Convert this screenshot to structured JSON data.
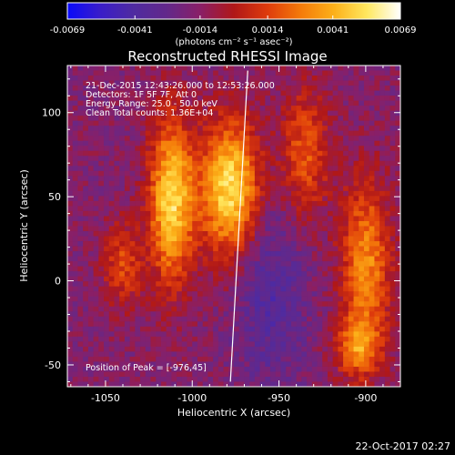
{
  "chart_data": {
    "type": "heatmap",
    "title": "Reconstructed RHESSI Image",
    "xlabel": "Heliocentric X (arcsec)",
    "ylabel": "Heliocentric Y (arcsec)",
    "xlim": [
      -1072,
      -880
    ],
    "ylim": [
      -63,
      128
    ],
    "xticks": [
      -1050,
      -1000,
      -950,
      -900
    ],
    "yticks": [
      -50,
      0,
      50,
      100
    ],
    "colorbar": {
      "label": "(photons cm⁻² s⁻¹ asec⁻²)",
      "range": [
        -0.0069,
        0.0069
      ],
      "ticks": [
        "-0.0069",
        "-0.0041",
        "-0.0014",
        "0.0014",
        "0.0041",
        "0.0069"
      ],
      "stops": [
        "#0a0afa",
        "#3a1dc8",
        "#4f2ba0",
        "#63288a",
        "#8a1f66",
        "#b01818",
        "#de3b0c",
        "#f47a0a",
        "#fcb019",
        "#ffe860",
        "#ffffff"
      ]
    },
    "annotations": [
      "21-Dec-2015 12:43:26.000 to 12:53:26.000",
      "Detectors: 1F 5F 7F, Att 0",
      "Energy Range: 25.0 - 50.0 keV",
      "Clean     Total counts: 1.36E+04"
    ],
    "peak_label": "Position of Peak = [-976,45]",
    "peak": [
      -976,
      45
    ],
    "limb_line": [
      [
        -968,
        125
      ],
      [
        -978,
        -60
      ]
    ],
    "sources": [
      {
        "x": -1012,
        "y": 48,
        "amp": 0.0068,
        "sx": 9,
        "sy": 34
      },
      {
        "x": -978,
        "y": 55,
        "amp": 0.0072,
        "sx": 12,
        "sy": 28
      },
      {
        "x": -1040,
        "y": 10,
        "amp": 0.003,
        "sx": 8,
        "sy": 18
      },
      {
        "x": -900,
        "y": 10,
        "amp": 0.0048,
        "sx": 10,
        "sy": 35
      },
      {
        "x": -905,
        "y": -40,
        "amp": 0.004,
        "sx": 9,
        "sy": 12
      },
      {
        "x": -935,
        "y": 75,
        "amp": 0.0035,
        "sx": 10,
        "sy": 28
      }
    ],
    "background": -0.0016,
    "grid": false
  },
  "timestamp": "22-Oct-2017 02:27"
}
